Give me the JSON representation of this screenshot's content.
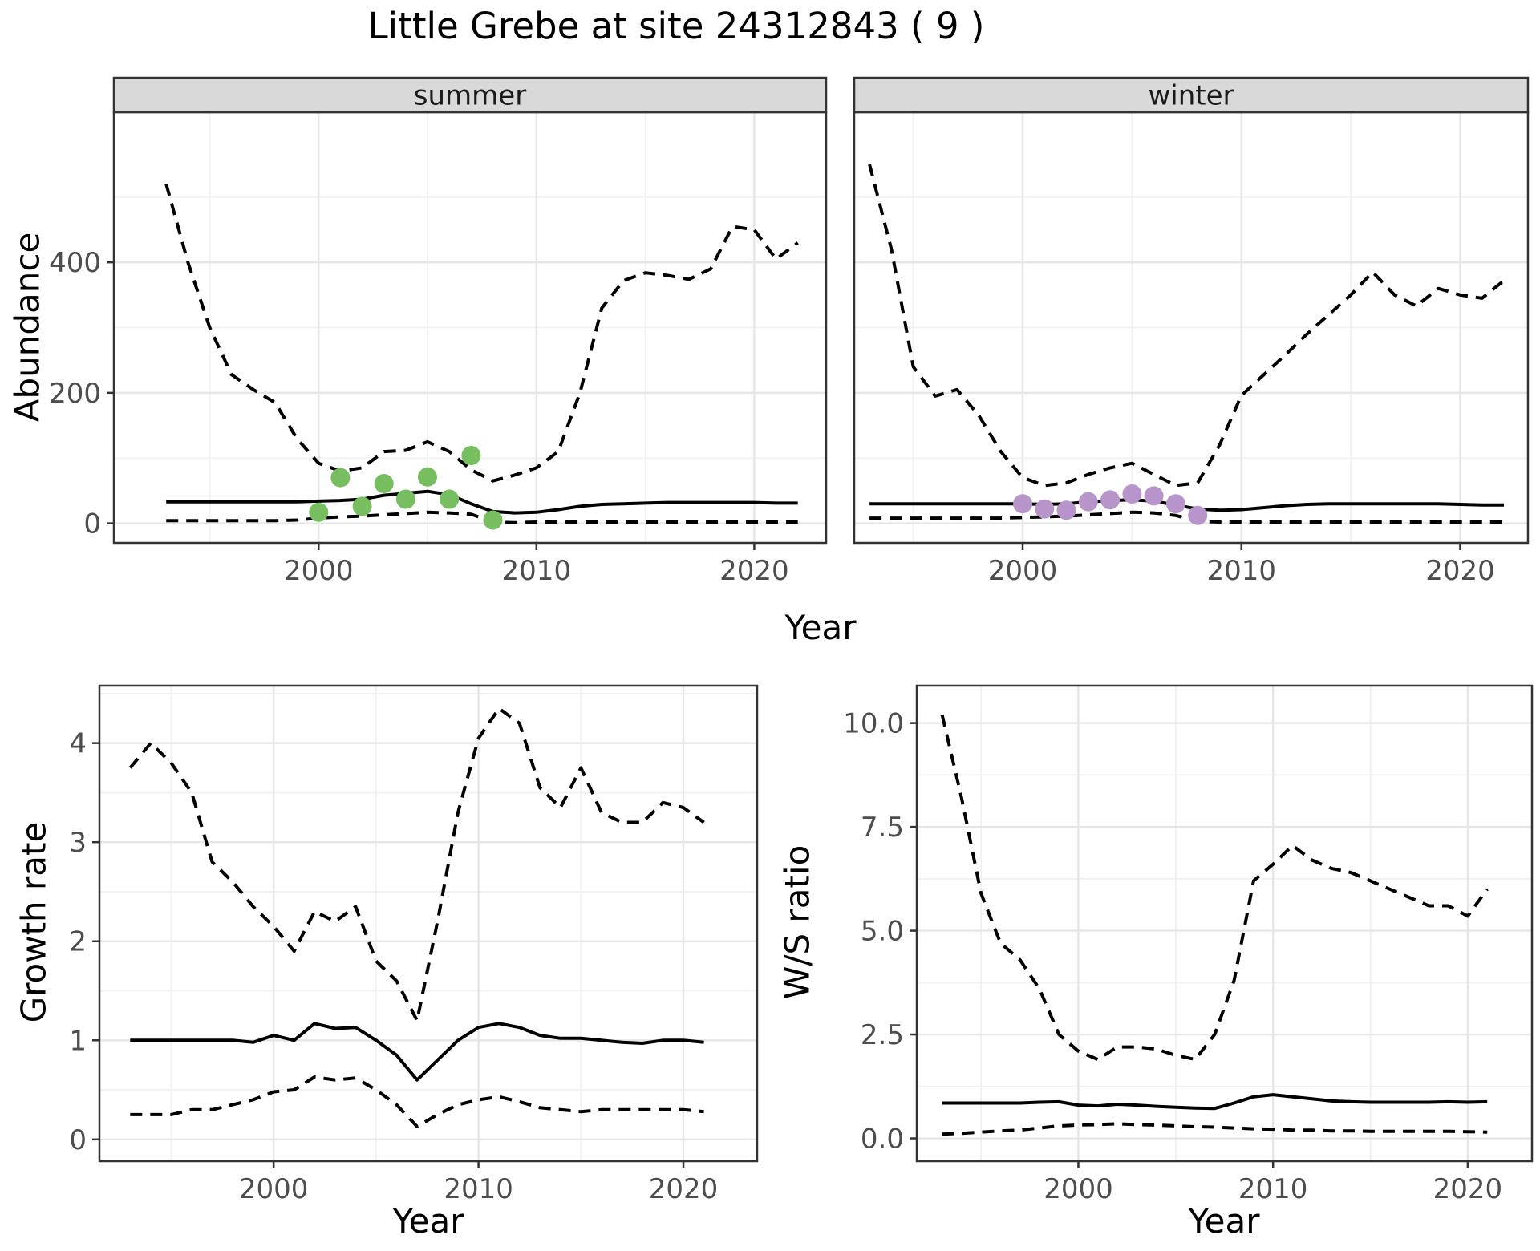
{
  "title": "Little Grebe at site 24312843 ( 9 )",
  "axis_labels": {
    "abundance": "Abundance",
    "year_top": "Year",
    "growth_rate": "Growth rate",
    "year_growth": "Year",
    "ws_ratio": "W/S ratio",
    "year_ws": "Year"
  },
  "colors": {
    "line": "#000000",
    "summer_points": "#77be61",
    "winter_points": "#b794ca",
    "strip_fill": "#d9d9d9",
    "strip_border": "#333333",
    "panel_border": "#333333",
    "grid_major": "#e6e6e6",
    "grid_minor": "#f1f1f1",
    "tick_label": "#4d4d4d",
    "tick_mark": "#333333"
  },
  "chart_data": [
    {
      "id": "abundance-summer",
      "type": "line",
      "facet_label": "summer",
      "xlabel": "Year",
      "ylabel": "Abundance",
      "xlim": [
        1990.6,
        2023.3
      ],
      "ylim": [
        -30,
        630
      ],
      "xticks": [
        2000,
        2010,
        2020
      ],
      "xminor": [
        1995,
        2005,
        2015
      ],
      "yticks": [
        {
          "v": 0,
          "label": "0"
        },
        {
          "v": 200,
          "label": "200"
        },
        {
          "v": 400,
          "label": "400"
        }
      ],
      "yminor": [
        100,
        300,
        500
      ],
      "x": [
        1993,
        1994,
        1995,
        1996,
        1997,
        1998,
        1999,
        2000,
        2001,
        2002,
        2003,
        2004,
        2005,
        2006,
        2007,
        2008,
        2009,
        2010,
        2011,
        2012,
        2013,
        2014,
        2015,
        2016,
        2017,
        2018,
        2019,
        2020,
        2021,
        2022
      ],
      "series": [
        {
          "name": "upper-ci-dashed",
          "style": "dashed",
          "values": [
            520,
            400,
            300,
            228,
            205,
            185,
            130,
            92,
            80,
            85,
            110,
            112,
            125,
            110,
            82,
            65,
            74,
            85,
            110,
            200,
            330,
            372,
            384,
            380,
            374,
            390,
            455,
            450,
            405,
            430
          ]
        },
        {
          "name": "median-solid",
          "style": "solid",
          "values": [
            33,
            33,
            33,
            33,
            33,
            33,
            33,
            34,
            35,
            37,
            43,
            46,
            49,
            44,
            30,
            18,
            16,
            17,
            21,
            26,
            29,
            30,
            31,
            32,
            32,
            32,
            32,
            32,
            31,
            31
          ]
        },
        {
          "name": "lower-ci-dashed",
          "style": "dashed",
          "values": [
            4,
            4,
            4,
            4,
            4,
            4,
            5,
            8,
            10,
            11,
            13,
            15,
            17,
            16,
            14,
            2,
            1,
            2,
            2,
            2,
            2,
            2,
            2,
            2,
            2,
            2,
            2,
            2,
            2,
            2
          ]
        }
      ],
      "points": {
        "name": "observed-summer-counts",
        "color": "#77be61",
        "x": [
          2000,
          2001,
          2002,
          2003,
          2004,
          2005,
          2006,
          2007,
          2008
        ],
        "y": [
          17,
          70,
          26,
          61,
          37,
          71,
          37,
          104,
          5
        ]
      }
    },
    {
      "id": "abundance-winter",
      "type": "line",
      "facet_label": "winter",
      "xlabel": "Year",
      "ylabel": "Abundance",
      "xlim": [
        1992.3,
        2023.1
      ],
      "ylim": [
        -30,
        630
      ],
      "xticks": [
        2000,
        2010,
        2020
      ],
      "xminor": [
        1995,
        2005,
        2015
      ],
      "yticks": [
        {
          "v": 0,
          "label": "0"
        },
        {
          "v": 200,
          "label": "200"
        },
        {
          "v": 400,
          "label": "400"
        }
      ],
      "yminor": [
        100,
        300,
        500
      ],
      "x": [
        1993,
        1994,
        1995,
        1996,
        1997,
        1998,
        1999,
        2000,
        2001,
        2002,
        2003,
        2004,
        2005,
        2006,
        2007,
        2008,
        2009,
        2010,
        2011,
        2012,
        2013,
        2014,
        2015,
        2016,
        2017,
        2018,
        2019,
        2020,
        2021,
        2022
      ],
      "series": [
        {
          "name": "upper-ci-dashed",
          "style": "dashed",
          "values": [
            550,
            420,
            240,
            195,
            205,
            165,
            110,
            70,
            58,
            62,
            75,
            85,
            92,
            75,
            58,
            62,
            120,
            196,
            227,
            258,
            290,
            320,
            350,
            385,
            350,
            333,
            360,
            350,
            345,
            372
          ]
        },
        {
          "name": "median-solid",
          "style": "solid",
          "values": [
            30,
            30,
            30,
            30,
            30,
            30,
            30,
            30,
            29,
            30,
            33,
            35,
            36,
            34,
            28,
            22,
            20,
            21,
            24,
            27,
            29,
            30,
            30,
            30,
            30,
            30,
            30,
            29,
            28,
            28
          ]
        },
        {
          "name": "lower-ci-dashed",
          "style": "dashed",
          "values": [
            8,
            8,
            8,
            8,
            8,
            8,
            8,
            9,
            10,
            11,
            13,
            15,
            17,
            16,
            12,
            3,
            2,
            2,
            2,
            2,
            2,
            2,
            2,
            2,
            2,
            2,
            2,
            2,
            2,
            2
          ]
        }
      ],
      "points": {
        "name": "observed-winter-counts",
        "color": "#b794ca",
        "x": [
          2000,
          2001,
          2002,
          2003,
          2004,
          2005,
          2006,
          2007,
          2008
        ],
        "y": [
          30,
          22,
          20,
          33,
          36,
          45,
          42,
          30,
          12
        ]
      }
    },
    {
      "id": "growth-rate",
      "type": "line",
      "facet_label": "",
      "xlabel": "Year",
      "ylabel": "Growth rate",
      "xlim": [
        1991.5,
        2023.6
      ],
      "ylim": [
        -0.22,
        4.58
      ],
      "xticks": [
        2000,
        2010,
        2020
      ],
      "xminor": [
        1995,
        2005,
        2015
      ],
      "yticks": [
        {
          "v": 0,
          "label": "0"
        },
        {
          "v": 1,
          "label": "1"
        },
        {
          "v": 2,
          "label": "2"
        },
        {
          "v": 3,
          "label": "3"
        },
        {
          "v": 4,
          "label": "4"
        }
      ],
      "yminor": [
        0.5,
        1.5,
        2.5,
        3.5,
        4.5
      ],
      "x": [
        1993,
        1994,
        1995,
        1996,
        1997,
        1998,
        1999,
        2000,
        2001,
        2002,
        2003,
        2004,
        2005,
        2006,
        2007,
        2008,
        2009,
        2010,
        2011,
        2012,
        2013,
        2014,
        2015,
        2016,
        2017,
        2018,
        2019,
        2020,
        2021
      ],
      "series": [
        {
          "name": "upper-ci-dashed",
          "style": "dashed",
          "values": [
            3.75,
            4.0,
            3.8,
            3.5,
            2.8,
            2.6,
            2.35,
            2.15,
            1.9,
            2.3,
            2.2,
            2.35,
            1.8,
            1.6,
            1.2,
            2.2,
            3.3,
            4.05,
            4.35,
            4.2,
            3.55,
            3.35,
            3.75,
            3.3,
            3.2,
            3.2,
            3.4,
            3.35,
            3.2
          ]
        },
        {
          "name": "median-solid",
          "style": "solid",
          "values": [
            1.0,
            1.0,
            1.0,
            1.0,
            1.0,
            1.0,
            0.98,
            1.05,
            1.0,
            1.17,
            1.12,
            1.13,
            1.0,
            0.85,
            0.6,
            0.8,
            1.0,
            1.13,
            1.17,
            1.13,
            1.05,
            1.02,
            1.02,
            1.0,
            0.98,
            0.97,
            1.0,
            1.0,
            0.98
          ]
        },
        {
          "name": "lower-ci-dashed",
          "style": "dashed",
          "values": [
            0.25,
            0.25,
            0.25,
            0.3,
            0.3,
            0.35,
            0.4,
            0.48,
            0.5,
            0.63,
            0.6,
            0.62,
            0.5,
            0.35,
            0.13,
            0.25,
            0.35,
            0.4,
            0.43,
            0.38,
            0.32,
            0.3,
            0.28,
            0.3,
            0.3,
            0.3,
            0.3,
            0.3,
            0.28
          ]
        }
      ],
      "points": null
    },
    {
      "id": "ws-ratio",
      "type": "line",
      "facet_label": "",
      "xlabel": "Year",
      "ylabel": "W/S ratio",
      "xlim": [
        1991.7,
        2023.3
      ],
      "ylim": [
        -0.55,
        10.9
      ],
      "xticks": [
        2000,
        2010,
        2020
      ],
      "xminor": [
        1995,
        2005,
        2015
      ],
      "yticks": [
        {
          "v": 0,
          "label": "0.0"
        },
        {
          "v": 2.5,
          "label": "2.5"
        },
        {
          "v": 5,
          "label": "5.0"
        },
        {
          "v": 7.5,
          "label": "7.5"
        },
        {
          "v": 10,
          "label": "10.0"
        }
      ],
      "yminor": [
        1.25,
        3.75,
        6.25,
        8.75
      ],
      "x": [
        1993,
        1994,
        1995,
        1996,
        1997,
        1998,
        1999,
        2000,
        2001,
        2002,
        2003,
        2004,
        2005,
        2006,
        2007,
        2008,
        2009,
        2010,
        2011,
        2012,
        2013,
        2014,
        2015,
        2016,
        2017,
        2018,
        2019,
        2020,
        2021
      ],
      "series": [
        {
          "name": "upper-ci-dashed",
          "style": "dashed",
          "values": [
            10.2,
            8.2,
            5.9,
            4.7,
            4.3,
            3.6,
            2.5,
            2.1,
            1.9,
            2.2,
            2.2,
            2.15,
            2.0,
            1.9,
            2.5,
            3.8,
            6.2,
            6.6,
            7.05,
            6.7,
            6.5,
            6.4,
            6.2,
            6.0,
            5.8,
            5.6,
            5.6,
            5.35,
            6.0
          ]
        },
        {
          "name": "median-solid",
          "style": "solid",
          "values": [
            0.85,
            0.85,
            0.85,
            0.85,
            0.85,
            0.87,
            0.88,
            0.8,
            0.78,
            0.82,
            0.8,
            0.77,
            0.75,
            0.73,
            0.72,
            0.85,
            1.0,
            1.05,
            1.0,
            0.95,
            0.9,
            0.88,
            0.87,
            0.87,
            0.87,
            0.87,
            0.88,
            0.87,
            0.88
          ]
        },
        {
          "name": "lower-ci-dashed",
          "style": "dashed",
          "values": [
            0.1,
            0.12,
            0.15,
            0.18,
            0.2,
            0.25,
            0.3,
            0.32,
            0.33,
            0.35,
            0.33,
            0.32,
            0.3,
            0.28,
            0.27,
            0.25,
            0.23,
            0.22,
            0.2,
            0.2,
            0.18,
            0.18,
            0.17,
            0.17,
            0.17,
            0.17,
            0.17,
            0.16,
            0.15
          ]
        }
      ],
      "points": null
    }
  ]
}
